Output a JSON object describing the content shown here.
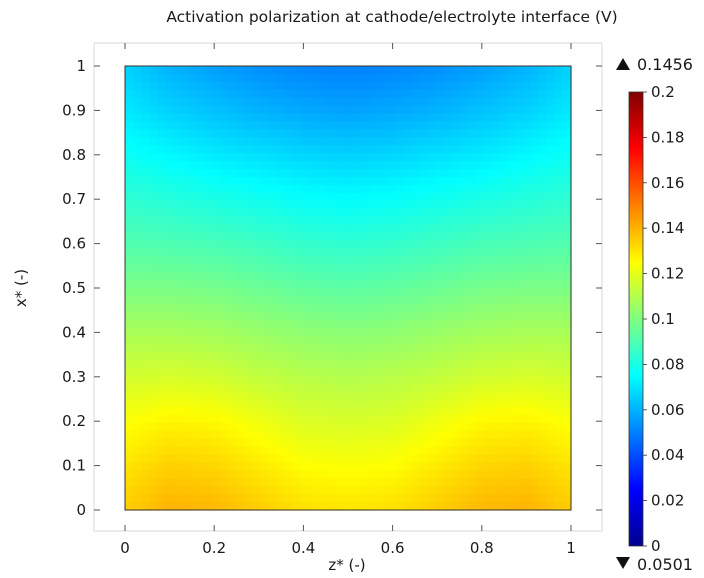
{
  "chart_data": {
    "type": "heatmap",
    "title": "Activation polarization at cathode/electrolyte interface (V)",
    "xlabel": "z* (-)",
    "ylabel": "x* (-)",
    "xlim": [
      0,
      1
    ],
    "ylim": [
      0,
      1
    ],
    "x_ticks": [
      "0",
      "0.2",
      "0.4",
      "0.6",
      "0.8",
      "1"
    ],
    "y_ticks": [
      "0",
      "0.1",
      "0.2",
      "0.3",
      "0.4",
      "0.5",
      "0.6",
      "0.7",
      "0.8",
      "0.9",
      "1"
    ],
    "colorbar": {
      "range": [
        0,
        0.2
      ],
      "ticks": [
        "0",
        "0.02",
        "0.04",
        "0.06",
        "0.08",
        "0.1",
        "0.12",
        "0.14",
        "0.16",
        "0.18",
        "0.2"
      ],
      "colormap": "rainbow",
      "colors": [
        "#00008f",
        "#0000ff",
        "#0080ff",
        "#00ffff",
        "#80ff80",
        "#ffff00",
        "#ff8000",
        "#ff0000",
        "#800000"
      ]
    },
    "max_label": "0.1456",
    "min_label": "0.0501",
    "max_value": 0.1456,
    "min_value": 0.0501,
    "field_samples": {
      "z": [
        0,
        0.1,
        0.2,
        0.3,
        0.4,
        0.5,
        0.6,
        0.7,
        0.8,
        0.9,
        1
      ],
      "x": [
        0,
        0.1,
        0.2,
        0.3,
        0.4,
        0.5,
        0.6,
        0.7,
        0.8,
        0.9,
        1
      ],
      "values": [
        [
          0.135,
          0.14,
          0.139,
          0.135,
          0.131,
          0.13,
          0.131,
          0.135,
          0.139,
          0.14,
          0.135
        ],
        [
          0.13,
          0.134,
          0.133,
          0.129,
          0.125,
          0.124,
          0.125,
          0.129,
          0.133,
          0.134,
          0.13
        ],
        [
          0.124,
          0.127,
          0.126,
          0.122,
          0.118,
          0.117,
          0.118,
          0.122,
          0.126,
          0.127,
          0.124
        ],
        [
          0.116,
          0.117,
          0.116,
          0.113,
          0.111,
          0.11,
          0.111,
          0.113,
          0.116,
          0.117,
          0.116
        ],
        [
          0.108,
          0.108,
          0.107,
          0.105,
          0.103,
          0.102,
          0.103,
          0.105,
          0.107,
          0.108,
          0.108
        ],
        [
          0.099,
          0.099,
          0.098,
          0.096,
          0.094,
          0.093,
          0.094,
          0.096,
          0.098,
          0.099,
          0.099
        ],
        [
          0.091,
          0.09,
          0.089,
          0.087,
          0.085,
          0.084,
          0.085,
          0.087,
          0.089,
          0.09,
          0.091
        ],
        [
          0.084,
          0.082,
          0.08,
          0.078,
          0.076,
          0.075,
          0.076,
          0.078,
          0.08,
          0.082,
          0.084
        ],
        [
          0.077,
          0.074,
          0.071,
          0.069,
          0.067,
          0.066,
          0.067,
          0.069,
          0.071,
          0.074,
          0.077
        ],
        [
          0.071,
          0.066,
          0.063,
          0.06,
          0.058,
          0.057,
          0.058,
          0.06,
          0.063,
          0.066,
          0.071
        ],
        [
          0.066,
          0.06,
          0.056,
          0.053,
          0.051,
          0.05,
          0.051,
          0.053,
          0.056,
          0.06,
          0.066
        ]
      ]
    }
  }
}
